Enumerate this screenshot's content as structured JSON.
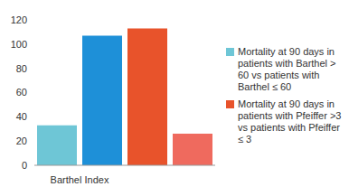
{
  "chart_data": {
    "type": "bar",
    "categories": [
      "Barthel Index",
      null,
      null,
      null
    ],
    "series": [
      {
        "name": "Mortality at 90 days in patients with Barthel > 60 vs patients with Barthel ≤ 60",
        "color": "#6ec6d6",
        "colors": [
          "#6ec6d6",
          "#1e90d8",
          null,
          null
        ],
        "values": [
          33,
          107,
          null,
          null
        ]
      },
      {
        "name": "Mortality at 90 days in patients with Pfeiffer >3 vs patients with Pfeiffer ≤ 3",
        "color": "#e8532b",
        "colors": [
          null,
          null,
          "#e8532b",
          "#ef6a5e"
        ],
        "values": [
          null,
          null,
          113,
          26
        ]
      }
    ],
    "ylim": [
      0,
      120
    ],
    "yticks": [
      0,
      20,
      40,
      60,
      80,
      100,
      120
    ],
    "grid": false,
    "legend": "right"
  }
}
